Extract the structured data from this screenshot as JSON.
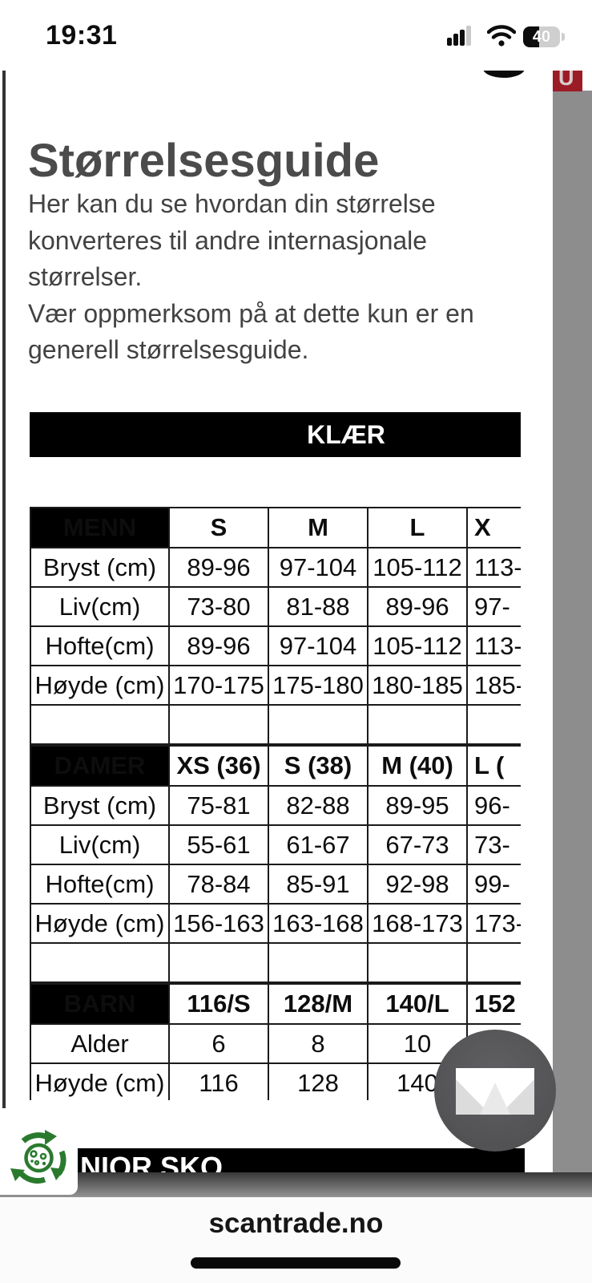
{
  "status_bar": {
    "time": "19:31",
    "battery_percent": "40"
  },
  "site_logo_letter": "U",
  "page": {
    "title": "Størrelsesguide",
    "intro": "Her kan du se hvordan din størrelse\nkonverteres til andre internasjonale\nstørrelser.",
    "note": "Vær oppmerksom på at dette kun er en\ngenerell størrelsesguide."
  },
  "size_table": {
    "banner": "KLÆR",
    "sections": [
      {
        "name": "MENN",
        "cols": [
          "S",
          "M",
          "L",
          "X"
        ],
        "rows": [
          {
            "label": "Bryst (cm)",
            "values": [
              "89-96",
              "97-104",
              "105-112",
              "113-"
            ]
          },
          {
            "label": "Liv(cm)",
            "values": [
              "73-80",
              "81-88",
              "89-96",
              "97-"
            ]
          },
          {
            "label": "Hofte(cm)",
            "values": [
              "89-96",
              "97-104",
              "105-112",
              "113-"
            ]
          },
          {
            "label": "Høyde (cm)",
            "values": [
              "170-175",
              "175-180",
              "180-185",
              "185-"
            ]
          }
        ]
      },
      {
        "name": "DAMER",
        "cols": [
          "XS (36)",
          "S (38)",
          "M (40)",
          "L ("
        ],
        "rows": [
          {
            "label": "Bryst (cm)",
            "values": [
              "75-81",
              "82-88",
              "89-95",
              "96-"
            ]
          },
          {
            "label": "Liv(cm)",
            "values": [
              "55-61",
              "61-67",
              "67-73",
              "73-"
            ]
          },
          {
            "label": "Hofte(cm)",
            "values": [
              "78-84",
              "85-91",
              "92-98",
              "99-"
            ]
          },
          {
            "label": "Høyde (cm)",
            "values": [
              "156-163",
              "163-168",
              "168-173",
              "173-"
            ]
          }
        ]
      },
      {
        "name": "BARN",
        "cols": [
          "116/S",
          "128/M",
          "140/L",
          "152"
        ],
        "rows": [
          {
            "label": "Alder",
            "values": [
              "6",
              "8",
              "10",
              ""
            ]
          },
          {
            "label": "Høyde (cm)",
            "values": [
              "116",
              "128",
              "140",
              ""
            ]
          }
        ]
      }
    ]
  },
  "junior_banner": "NIOR SKO",
  "browser_bar": {
    "url": "scantrade.no"
  },
  "colors": {
    "brand_red": "#9c1c26",
    "table_header_bg": "#000000",
    "overlay_gray": "#8d8d8d",
    "cookie_green": "#2a7a2e",
    "fab_gray": "#565658"
  }
}
